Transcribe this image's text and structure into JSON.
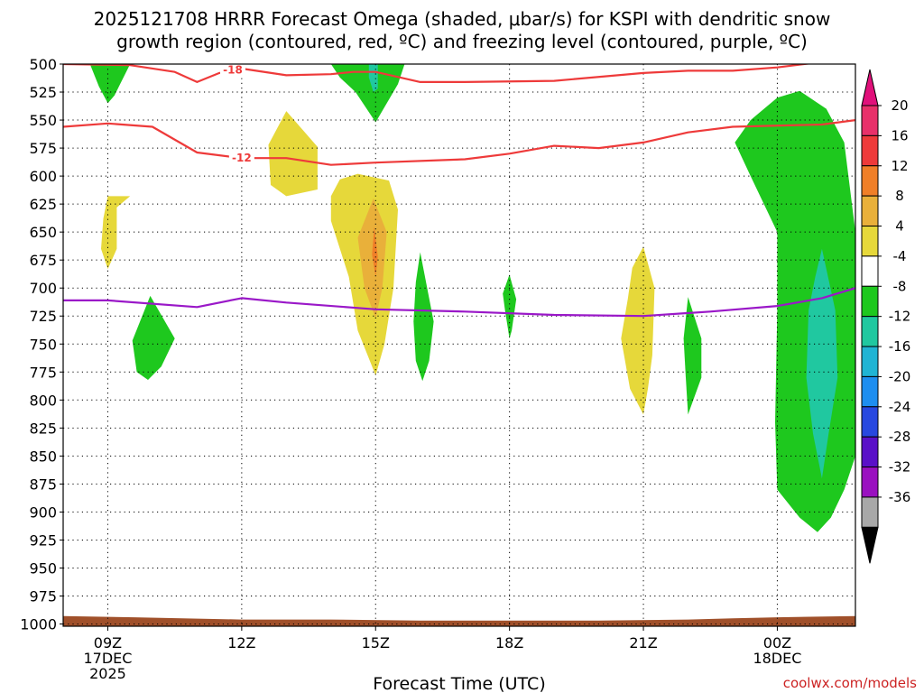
{
  "chart_data": {
    "type": "heatmap",
    "title_line1": "2025121708 HRRR Forecast Omega (shaded, μbar/s) for KSPI with dendritic snow",
    "title_line2": "growth region (contoured, red, ºC) and freezing level (contoured, purple, ºC)",
    "xlabel": "Forecast Time (UTC)",
    "credit": "coolwx.com/models",
    "y_axis": {
      "unit": "hPa",
      "ticks": [
        500,
        525,
        550,
        575,
        600,
        625,
        650,
        675,
        700,
        725,
        750,
        775,
        800,
        825,
        850,
        875,
        900,
        925,
        950,
        975,
        1000
      ],
      "range": [
        500,
        1002
      ]
    },
    "x_axis": {
      "unit": "hours since 00Z 17DEC",
      "range": [
        8.0,
        25.75
      ],
      "ticks": [
        {
          "hour": 9,
          "lines": [
            "09Z",
            "17DEC",
            "2025"
          ]
        },
        {
          "hour": 12,
          "lines": [
            "12Z"
          ]
        },
        {
          "hour": 15,
          "lines": [
            "15Z"
          ]
        },
        {
          "hour": 18,
          "lines": [
            "18Z"
          ]
        },
        {
          "hour": 21,
          "lines": [
            "21Z"
          ]
        },
        {
          "hour": 24,
          "lines": [
            "00Z",
            "18DEC"
          ]
        }
      ]
    },
    "colorbar": {
      "labels": [
        "20",
        "16",
        "12",
        "8",
        "4",
        "-4",
        "-8",
        "-12",
        "-16",
        "-20",
        "-24",
        "-28",
        "-32",
        "-36"
      ],
      "colors": [
        "#e8306a",
        "#ee3a3a",
        "#f07f28",
        "#e9b03a",
        "#e6d83a",
        "#ffffff",
        "#1ec81e",
        "#20c8a0",
        "#20b4d4",
        "#1e8ef0",
        "#2848e0",
        "#5a10c8",
        "#9a10c0",
        "#a8a8a8"
      ],
      "top_color": "#e0107a",
      "bottom_color": "#000000"
    },
    "contours": [
      {
        "name": "-18",
        "color": "#ee3a3a",
        "label": "-18",
        "label_at": [
          11.8,
          504.7
        ],
        "points": [
          [
            8.0,
            500
          ],
          [
            9.5,
            501
          ],
          [
            10.5,
            507
          ],
          [
            11.0,
            516
          ],
          [
            11.5,
            508
          ],
          [
            12.0,
            504
          ],
          [
            13.0,
            510
          ],
          [
            14.0,
            509
          ],
          [
            14.5,
            507
          ],
          [
            15.0,
            507
          ],
          [
            16.0,
            516
          ],
          [
            17.0,
            516
          ],
          [
            19.0,
            515
          ],
          [
            21.0,
            508
          ],
          [
            22.0,
            506
          ],
          [
            23.0,
            506
          ],
          [
            24.0,
            503
          ],
          [
            24.8,
            499
          ]
        ]
      },
      {
        "name": "-12",
        "color": "#ee3a3a",
        "label": "-12",
        "label_at": [
          12.0,
          583.5
        ],
        "points": [
          [
            8.0,
            556
          ],
          [
            9.0,
            553
          ],
          [
            10.0,
            556
          ],
          [
            11.0,
            579
          ],
          [
            12.0,
            584
          ],
          [
            13.0,
            584
          ],
          [
            14.0,
            590
          ],
          [
            15.0,
            588
          ],
          [
            17.0,
            585
          ],
          [
            18.0,
            580
          ],
          [
            19.0,
            573
          ],
          [
            20.0,
            575
          ],
          [
            21.0,
            570
          ],
          [
            22.0,
            561
          ],
          [
            23.0,
            556
          ],
          [
            25.0,
            554
          ],
          [
            25.75,
            550
          ]
        ]
      },
      {
        "name": "freezing-level",
        "color": "#9a18c8",
        "label": "",
        "points": [
          [
            8.0,
            711
          ],
          [
            9.0,
            711
          ],
          [
            11.0,
            717
          ],
          [
            12.0,
            709
          ],
          [
            13.0,
            713
          ],
          [
            15.0,
            719
          ],
          [
            17.0,
            721
          ],
          [
            19.0,
            724
          ],
          [
            21.0,
            725
          ],
          [
            22.5,
            721
          ],
          [
            24.0,
            716
          ],
          [
            25.0,
            709
          ],
          [
            25.75,
            700
          ]
        ]
      }
    ],
    "shaded_regions": [
      {
        "name": "green-top-09z",
        "color": "#1ec81e",
        "points": [
          [
            8.6,
            500
          ],
          [
            9.5,
            500
          ],
          [
            9.15,
            528
          ],
          [
            9.0,
            535
          ],
          [
            8.8,
            520
          ]
        ]
      },
      {
        "name": "green-09z-750",
        "color": "#1ec81e",
        "points": [
          [
            9.95,
            707
          ],
          [
            10.5,
            745
          ],
          [
            10.2,
            770
          ],
          [
            9.9,
            782
          ],
          [
            9.65,
            775
          ],
          [
            9.55,
            747
          ]
        ]
      },
      {
        "name": "yellow-09z-650",
        "color": "#e6d83a",
        "points": [
          [
            9.0,
            618
          ],
          [
            9.5,
            618
          ],
          [
            9.2,
            628
          ],
          [
            9.2,
            665
          ],
          [
            9.0,
            683
          ],
          [
            8.85,
            665
          ],
          [
            8.9,
            638
          ]
        ]
      },
      {
        "name": "yellow-13z-580",
        "color": "#e6d83a",
        "points": [
          [
            13.0,
            542
          ],
          [
            13.7,
            574
          ],
          [
            13.7,
            612
          ],
          [
            13.0,
            618
          ],
          [
            12.65,
            608
          ],
          [
            12.6,
            572
          ]
        ]
      },
      {
        "name": "green-15z-top",
        "color": "#1ec81e",
        "points": [
          [
            14.0,
            500
          ],
          [
            15.65,
            500
          ],
          [
            15.5,
            518
          ],
          [
            15.0,
            552
          ],
          [
            14.55,
            525
          ],
          [
            14.2,
            512
          ]
        ]
      },
      {
        "name": "teal-15z-top",
        "color": "#20c8a0",
        "points": [
          [
            14.85,
            500
          ],
          [
            15.05,
            500
          ],
          [
            15.05,
            522
          ],
          [
            14.95,
            525
          ],
          [
            14.85,
            512
          ]
        ]
      },
      {
        "name": "yellow-15z",
        "color": "#e6d83a",
        "points": [
          [
            14.6,
            598
          ],
          [
            15.3,
            604
          ],
          [
            15.5,
            630
          ],
          [
            15.4,
            700
          ],
          [
            15.2,
            750
          ],
          [
            15.0,
            778
          ],
          [
            14.6,
            738
          ],
          [
            14.4,
            690
          ],
          [
            14.0,
            640
          ],
          [
            14.0,
            618
          ],
          [
            14.2,
            603
          ]
        ]
      },
      {
        "name": "orange-15z",
        "color": "#e9b03a",
        "points": [
          [
            14.95,
            620
          ],
          [
            15.25,
            650
          ],
          [
            15.15,
            700
          ],
          [
            15.0,
            727
          ],
          [
            14.75,
            700
          ],
          [
            14.6,
            655
          ]
        ]
      },
      {
        "name": "red-15z",
        "color": "#f07f28",
        "points": [
          [
            14.97,
            645
          ],
          [
            15.05,
            672
          ],
          [
            15.0,
            690
          ],
          [
            14.92,
            670
          ]
        ]
      },
      {
        "name": "green-16z",
        "color": "#1ec81e",
        "points": [
          [
            16.0,
            668
          ],
          [
            16.3,
            730
          ],
          [
            16.2,
            765
          ],
          [
            16.05,
            783
          ],
          [
            15.9,
            765
          ],
          [
            15.85,
            730
          ],
          [
            15.9,
            695
          ]
        ]
      },
      {
        "name": "green-18z",
        "color": "#1ec81e",
        "points": [
          [
            18.0,
            688
          ],
          [
            18.15,
            710
          ],
          [
            18.05,
            738
          ],
          [
            18.0,
            745
          ],
          [
            17.9,
            720
          ],
          [
            17.85,
            705
          ]
        ]
      },
      {
        "name": "yellow-21z",
        "color": "#e6d83a",
        "points": [
          [
            21.0,
            663
          ],
          [
            21.25,
            700
          ],
          [
            21.2,
            760
          ],
          [
            21.1,
            790
          ],
          [
            21.0,
            813
          ],
          [
            20.7,
            790
          ],
          [
            20.5,
            745
          ],
          [
            20.65,
            710
          ],
          [
            20.75,
            682
          ]
        ]
      },
      {
        "name": "green-22z",
        "color": "#1ec81e",
        "points": [
          [
            22.0,
            708
          ],
          [
            22.3,
            745
          ],
          [
            22.3,
            780
          ],
          [
            22.0,
            813
          ],
          [
            21.95,
            780
          ],
          [
            21.9,
            745
          ]
        ]
      },
      {
        "name": "green-east",
        "color": "#1ec81e",
        "points": [
          [
            24.5,
            524
          ],
          [
            25.1,
            540
          ],
          [
            25.5,
            570
          ],
          [
            25.75,
            650
          ],
          [
            25.75,
            850
          ],
          [
            25.5,
            880
          ],
          [
            25.2,
            905
          ],
          [
            24.9,
            918
          ],
          [
            24.5,
            905
          ],
          [
            24.0,
            880
          ],
          [
            23.95,
            820
          ],
          [
            24.0,
            720
          ],
          [
            24.0,
            650
          ],
          [
            23.4,
            600
          ],
          [
            23.05,
            570
          ],
          [
            23.4,
            550
          ],
          [
            24.0,
            530
          ]
        ]
      },
      {
        "name": "teal-east",
        "color": "#20c8a0",
        "points": [
          [
            25.0,
            665
          ],
          [
            25.3,
            720
          ],
          [
            25.35,
            780
          ],
          [
            25.15,
            830
          ],
          [
            25.0,
            870
          ],
          [
            24.8,
            830
          ],
          [
            24.65,
            780
          ],
          [
            24.7,
            720
          ],
          [
            24.85,
            690
          ]
        ]
      },
      {
        "name": "terrain",
        "color": "#a0502a",
        "points": [
          [
            8.0,
            993
          ],
          [
            9.6,
            994
          ],
          [
            12.0,
            996
          ],
          [
            14.0,
            996
          ],
          [
            16.0,
            997
          ],
          [
            20.0,
            997
          ],
          [
            22.0,
            996
          ],
          [
            23.0,
            995
          ],
          [
            24.0,
            994
          ],
          [
            25.75,
            993
          ],
          [
            25.75,
            1002
          ],
          [
            8.0,
            1002
          ]
        ]
      }
    ]
  }
}
